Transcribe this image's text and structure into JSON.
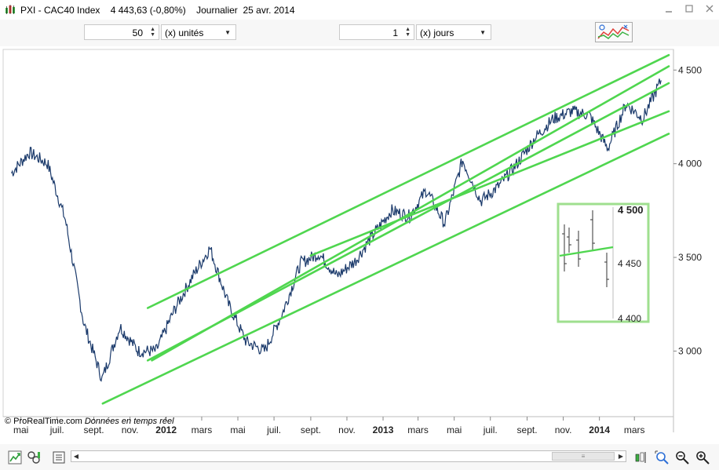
{
  "window": {
    "title": "PXI - CAC40 Index    4 443,63 (-0,80%)    Journalier  25 avr. 2014",
    "minimize_glyph": "▭",
    "maximize_glyph": "▭",
    "close_glyph": "✕"
  },
  "toolbar": {
    "units_value": "50",
    "units_dropdown": "(x) unités",
    "days_value": "1",
    "days_dropdown": "(x) jours",
    "trend_button_icon": "trend-indicator-icon"
  },
  "chart_data": {
    "type": "line",
    "title": "",
    "series": [
      {
        "name": "",
        "x": [
          "2011-04",
          "2011-05",
          "2011-06",
          "2011-07",
          "2011-08",
          "2011-09",
          "2011-10",
          "2011-11",
          "2011-12",
          "2012-01",
          "2012-02",
          "2012-03",
          "2012-04",
          "2012-05",
          "2012-06",
          "2012-07",
          "2012-08",
          "2012-09",
          "2012-10",
          "2012-11",
          "2012-12",
          "2013-01",
          "2013-02",
          "2013-03",
          "2013-04",
          "2013-05",
          "2013-06",
          "2013-07",
          "2013-08",
          "2013-09",
          "2013-10",
          "2013-11",
          "2013-12",
          "2014-01",
          "2014-02",
          "2014-03",
          "2014-04"
        ],
        "values": [
          3950,
          4060,
          4000,
          3700,
          3150,
          2850,
          3130,
          3000,
          3000,
          3220,
          3400,
          3550,
          3250,
          3050,
          3000,
          3200,
          3470,
          3520,
          3400,
          3480,
          3620,
          3750,
          3720,
          3860,
          3680,
          4020,
          3800,
          3880,
          4000,
          4140,
          4240,
          4280,
          4260,
          4080,
          4320,
          4240,
          4443.63
        ]
      }
    ],
    "channel_lines": [
      {
        "x": [
          "2011-12-01",
          "2014-04-28"
        ],
        "values": [
          3230,
          4580
        ]
      },
      {
        "x": [
          "2011-12-08",
          "2014-04-28"
        ],
        "values": [
          2950,
          4520
        ]
      },
      {
        "x": [
          "2011-09-16",
          "2014-04-28"
        ],
        "values": [
          2720,
          4160
        ]
      },
      {
        "x": [
          "2011-12-01",
          "2014-04-28"
        ],
        "values": [
          2950,
          4430
        ]
      },
      {
        "x": [
          "2012-09-01",
          "2014-04-28"
        ],
        "values": [
          3510,
          4280
        ]
      }
    ],
    "ylim": [
      2650,
      4610
    ],
    "y_ticks": [
      "4 500",
      "4 000",
      "3 500",
      "3 000"
    ],
    "x_ticks": [
      "mai",
      "juil.",
      "sept.",
      "nov.",
      "2012",
      "mars",
      "mai",
      "juil.",
      "sept.",
      "nov.",
      "2013",
      "mars",
      "mai",
      "juil.",
      "sept.",
      "nov.",
      "2014",
      "mars"
    ],
    "bold_x_ticks": [
      "2012",
      "2013",
      "2014"
    ],
    "line_color": "#1b3a6b",
    "channel_color": "#4fd64f",
    "grid": false,
    "inset": {
      "y_ticks": [
        "4 500",
        "4 450",
        "4 400"
      ],
      "border_color": "#9fdf8f"
    }
  },
  "footer": {
    "credit_brand": "© ProRealTime.com",
    "credit_note": "Données en temps réel"
  },
  "bottom": {
    "scroll_thumb_glyph": "≡",
    "left_arrow": "◀",
    "right_arrow": "▶"
  }
}
